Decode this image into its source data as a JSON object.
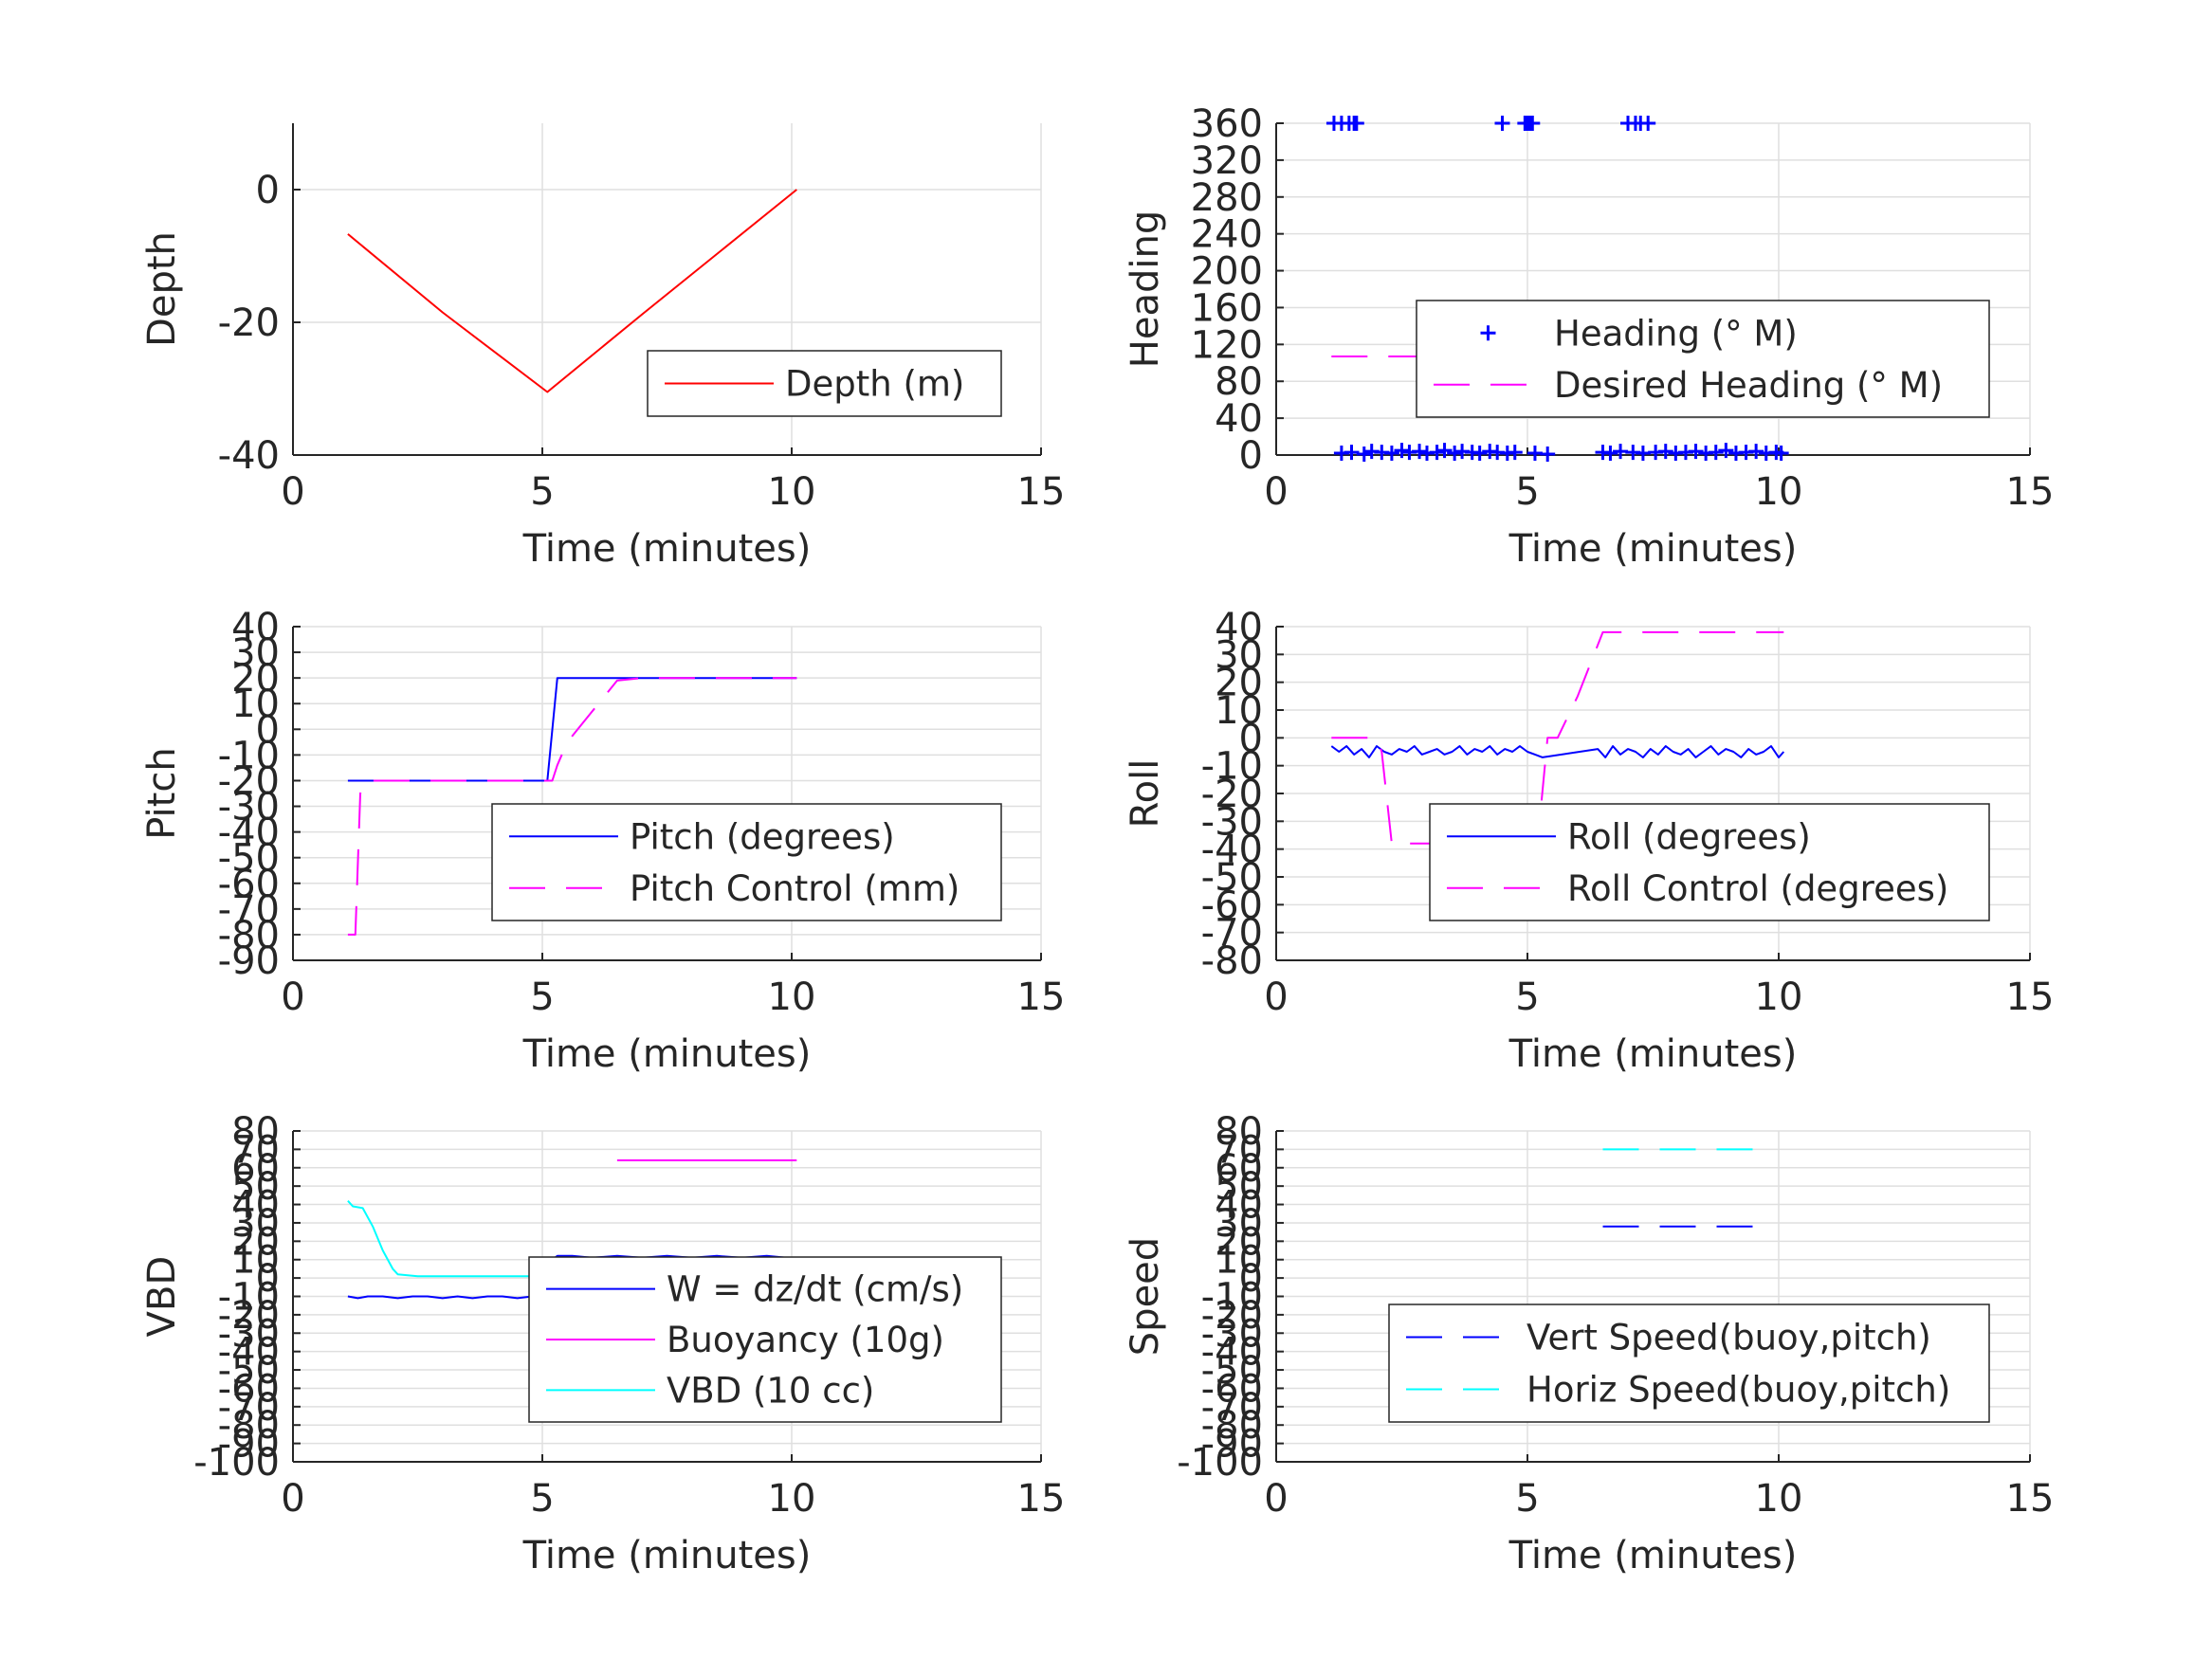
{
  "colors": {
    "red": "#ff0000",
    "blue": "#0000ff",
    "magenta": "#ff00ff",
    "cyan": "#00ffff",
    "grid": "#dfdfdf",
    "axis": "#262626"
  },
  "chart_data": [
    {
      "id": "depth",
      "type": "line",
      "xlabel": "Time (minutes)",
      "ylabel": "Depth",
      "xlim": [
        0,
        15
      ],
      "ylim": [
        -40,
        10
      ],
      "xticks": [
        0,
        5,
        10,
        15
      ],
      "yticks": [
        -40,
        -20,
        0
      ],
      "grid": true,
      "legend_position": "bottom-right",
      "series": [
        {
          "name": "Depth (m)",
          "color": "#ff0000",
          "style": "solid",
          "marker": "none",
          "x": [
            1.1,
            3.0,
            5.1,
            7.0,
            10.1
          ],
          "y": [
            -6.7,
            -18.5,
            -30.5,
            -18.8,
            0.0
          ]
        }
      ]
    },
    {
      "id": "heading",
      "type": "line",
      "xlabel": "Time (minutes)",
      "ylabel": "Heading",
      "xlim": [
        0,
        15
      ],
      "ylim": [
        0,
        360
      ],
      "xticks": [
        0,
        5,
        10,
        15
      ],
      "yticks": [
        0,
        40,
        80,
        120,
        160,
        200,
        240,
        280,
        320,
        360
      ],
      "grid": true,
      "legend_position": "center-right",
      "series": [
        {
          "name": "Heading (° M)",
          "color": "#0000ff",
          "style": "none",
          "marker": "plus",
          "x": [
            1.15,
            1.3,
            1.45,
            1.55,
            1.6,
            4.5,
            4.95,
            5.0,
            5.05,
            5.1,
            7.0,
            7.15,
            7.25,
            7.4,
            1.3,
            1.5,
            1.75,
            1.9,
            2.1,
            2.3,
            2.5,
            2.65,
            2.85,
            3.0,
            3.2,
            3.35,
            3.55,
            3.7,
            3.9,
            4.05,
            4.25,
            4.4,
            4.6,
            4.75,
            5.15,
            5.4,
            6.5,
            6.65,
            6.85,
            7.1,
            7.3,
            7.55,
            7.75,
            7.95,
            8.15,
            8.35,
            8.55,
            8.75,
            8.95,
            9.15,
            9.35,
            9.55,
            9.75,
            9.95,
            10.05
          ],
          "y": [
            360,
            360,
            360,
            360,
            360,
            360,
            360,
            360,
            360,
            360,
            360,
            360,
            360,
            360,
            2,
            3,
            1,
            4,
            3,
            2,
            5,
            3,
            4,
            2,
            3,
            5,
            2,
            4,
            3,
            2,
            4,
            3,
            2,
            3,
            2,
            1,
            3,
            2,
            4,
            3,
            2,
            3,
            4,
            2,
            3,
            4,
            2,
            3,
            5,
            2,
            3,
            4,
            2,
            3,
            2
          ]
        },
        {
          "name": "Desired Heading (° M)",
          "color": "#ff00ff",
          "style": "dashed",
          "marker": "none",
          "x": [
            1.1,
            10.1
          ],
          "y": [
            107,
            107
          ]
        }
      ]
    },
    {
      "id": "pitch",
      "type": "line",
      "xlabel": "Time (minutes)",
      "ylabel": "Pitch",
      "xlim": [
        0,
        15
      ],
      "ylim": [
        -90,
        40
      ],
      "xticks": [
        0,
        5,
        10,
        15
      ],
      "yticks": [
        -90,
        -80,
        -70,
        -60,
        -50,
        -40,
        -30,
        -20,
        -10,
        0,
        10,
        20,
        30,
        40
      ],
      "grid": true,
      "legend_position": "bottom-right",
      "series": [
        {
          "name": "Pitch (degrees)",
          "color": "#0000ff",
          "style": "solid",
          "marker": "none",
          "x": [
            1.1,
            2.0,
            3.0,
            4.0,
            5.1,
            5.3,
            6.0,
            7.0,
            8.0,
            9.0,
            10.1
          ],
          "y": [
            -20,
            -20,
            -20,
            -20,
            -20,
            20,
            20,
            20,
            20,
            20,
            20
          ]
        },
        {
          "name": "Pitch Control (mm)",
          "color": "#ff00ff",
          "style": "dashed",
          "marker": "none",
          "x": [
            1.1,
            1.25,
            1.35,
            1.45,
            2.0,
            3.0,
            4.0,
            5.2,
            5.3,
            5.5,
            6.0,
            6.5,
            7.0,
            8.0,
            9.0,
            10.1
          ],
          "y": [
            -80,
            -80,
            -25,
            -20,
            -20,
            -20,
            -20,
            -20,
            -14,
            -5,
            7,
            19,
            20,
            20,
            20,
            20
          ]
        }
      ]
    },
    {
      "id": "roll",
      "type": "line",
      "xlabel": "Time (minutes)",
      "ylabel": "Roll",
      "xlim": [
        0,
        15
      ],
      "ylim": [
        -80,
        40
      ],
      "xticks": [
        0,
        5,
        10,
        15
      ],
      "yticks": [
        -80,
        -70,
        -60,
        -50,
        -40,
        -30,
        -20,
        -10,
        0,
        10,
        20,
        30,
        40
      ],
      "grid": true,
      "legend_position": "bottom-right",
      "series": [
        {
          "name": "Roll (degrees)",
          "color": "#0000ff",
          "style": "solid",
          "marker": "none",
          "x": [
            1.1,
            1.25,
            1.4,
            1.55,
            1.7,
            1.85,
            2.0,
            2.15,
            2.3,
            2.45,
            2.6,
            2.75,
            2.9,
            3.05,
            3.2,
            3.35,
            3.5,
            3.65,
            3.8,
            3.95,
            4.1,
            4.25,
            4.4,
            4.55,
            4.7,
            4.85,
            5.0,
            5.15,
            5.3,
            6.4,
            6.55,
            6.7,
            6.85,
            7.0,
            7.15,
            7.3,
            7.45,
            7.6,
            7.75,
            7.9,
            8.05,
            8.2,
            8.35,
            8.5,
            8.65,
            8.8,
            8.95,
            9.1,
            9.25,
            9.4,
            9.55,
            9.7,
            9.85,
            10.0,
            10.1
          ],
          "y": [
            -3,
            -5,
            -3,
            -6,
            -4,
            -7,
            -3,
            -5,
            -6,
            -4,
            -5,
            -3,
            -6,
            -5,
            -4,
            -6,
            -5,
            -3,
            -6,
            -4,
            -5,
            -3,
            -6,
            -4,
            -5,
            -3,
            -5,
            -6,
            -7,
            -4,
            -7,
            -3,
            -6,
            -4,
            -5,
            -7,
            -4,
            -6,
            -3,
            -5,
            -6,
            -4,
            -7,
            -5,
            -3,
            -6,
            -4,
            -5,
            -7,
            -4,
            -6,
            -5,
            -3,
            -7,
            -5
          ]
        },
        {
          "name": "Roll Control (degrees)",
          "color": "#ff00ff",
          "style": "dashed",
          "marker": "none",
          "x": [
            1.1,
            2.0,
            2.1,
            2.3,
            2.4,
            3.0,
            4.0,
            5.0,
            5.2,
            5.4,
            5.6,
            6.0,
            6.5,
            7.0,
            8.0,
            9.0,
            10.1
          ],
          "y": [
            0,
            0,
            -5,
            -38,
            -38,
            -38,
            -38,
            -38,
            -38,
            0,
            0,
            15,
            38,
            38,
            38,
            38,
            38
          ]
        }
      ]
    },
    {
      "id": "vbd",
      "type": "line",
      "xlabel": "Time (minutes)",
      "ylabel": "VBD",
      "xlim": [
        0,
        15
      ],
      "ylim": [
        -100,
        80
      ],
      "xticks": [
        0,
        5,
        10,
        15
      ],
      "yticks": [
        -100,
        -90,
        -80,
        -70,
        -60,
        -50,
        -40,
        -30,
        -20,
        -10,
        0,
        10,
        20,
        30,
        40,
        50,
        60,
        70,
        80
      ],
      "grid": true,
      "legend_position": "bottom-right",
      "series": [
        {
          "name": "W = dz/dt (cm/s)",
          "color": "#0000ff",
          "style": "solid",
          "marker": "none",
          "x": [
            1.1,
            1.3,
            1.5,
            1.8,
            2.1,
            2.4,
            2.7,
            3.0,
            3.3,
            3.6,
            3.9,
            4.2,
            4.5,
            4.8,
            5.0,
            5.1,
            5.2,
            5.3,
            5.6,
            6.0,
            6.5,
            7.0,
            7.5,
            8.0,
            8.5,
            9.0,
            9.5,
            9.9,
            10.1
          ],
          "y": [
            -10,
            -11,
            -10,
            -10,
            -11,
            -10,
            -10,
            -11,
            -10,
            -11,
            -10,
            -10,
            -11,
            -10,
            -10,
            5,
            10,
            12,
            12,
            11,
            12,
            11,
            12,
            11,
            12,
            11,
            12,
            11,
            9
          ]
        },
        {
          "name": "Buoyancy (10g)",
          "color": "#ff00ff",
          "style": "solid",
          "marker": "none",
          "x": [
            6.5,
            7.0,
            7.5,
            8.0,
            8.5,
            9.0,
            9.5,
            10.1
          ],
          "y": [
            64,
            64,
            64,
            64,
            64,
            64,
            64,
            64
          ]
        },
        {
          "name": "VBD (10 cc)",
          "color": "#00ffff",
          "style": "solid",
          "marker": "none",
          "x": [
            1.1,
            1.2,
            1.4,
            1.6,
            1.8,
            2.0,
            2.1,
            2.5,
            3.0,
            4.0,
            5.0,
            6.0,
            7.0,
            8.0,
            9.0,
            10.1
          ],
          "y": [
            42,
            39,
            38,
            28,
            15,
            5,
            2,
            1,
            1,
            1,
            1,
            1,
            2,
            2,
            2,
            2
          ]
        }
      ]
    },
    {
      "id": "speed",
      "type": "line",
      "xlabel": "Time (minutes)",
      "ylabel": "Speed",
      "xlim": [
        0,
        15
      ],
      "ylim": [
        -100,
        80
      ],
      "xticks": [
        0,
        5,
        10,
        15
      ],
      "yticks": [
        -100,
        -90,
        -80,
        -70,
        -60,
        -50,
        -40,
        -30,
        -20,
        -10,
        0,
        10,
        20,
        30,
        40,
        50,
        60,
        70,
        80
      ],
      "grid": true,
      "legend_position": "bottom-right",
      "series": [
        {
          "name": "Vert Speed(buoy,pitch)",
          "color": "#0000ff",
          "style": "dashed",
          "marker": "none",
          "x": [
            6.5,
            9.8
          ],
          "y": [
            28,
            28
          ]
        },
        {
          "name": "Horiz Speed(buoy,pitch)",
          "color": "#00ffff",
          "style": "dashed",
          "marker": "none",
          "x": [
            6.5,
            9.8
          ],
          "y": [
            70,
            70
          ]
        }
      ]
    }
  ]
}
